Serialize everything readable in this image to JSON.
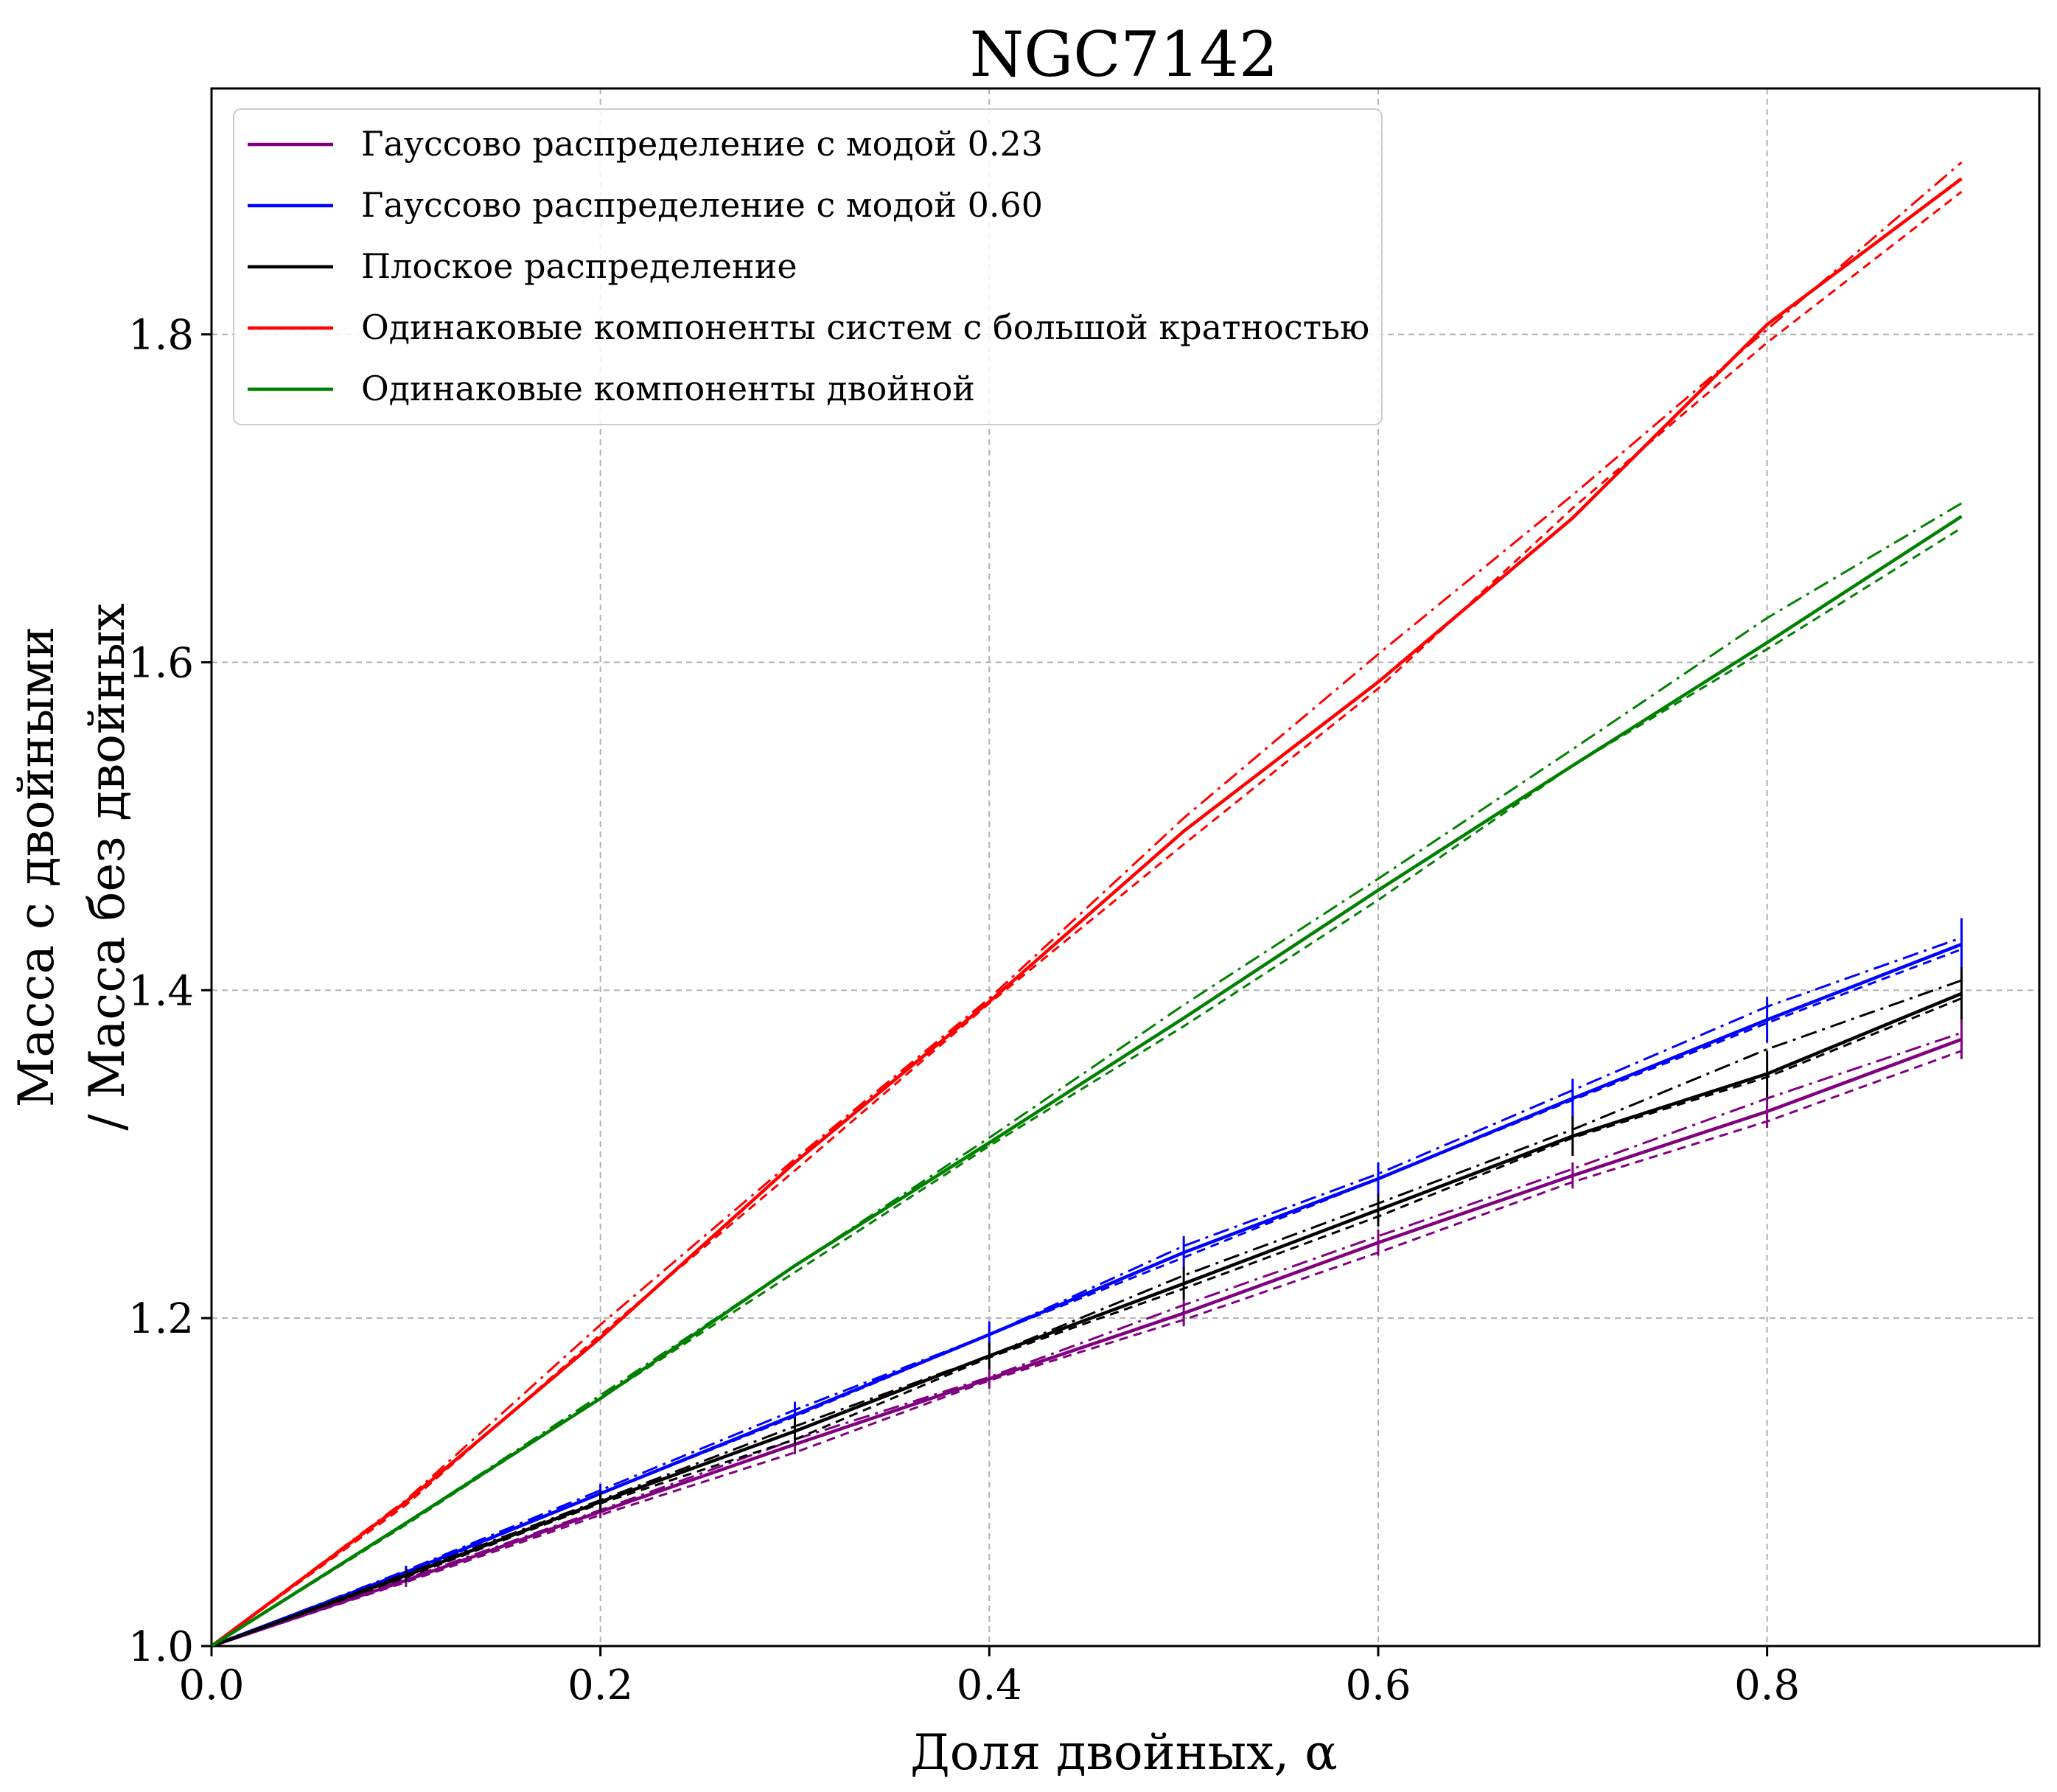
{
  "chart_data": {
    "type": "line",
    "title": "NGC7142",
    "xlabel": "Доля двойных, α",
    "ylabel_line1": "Масса с двойными",
    "ylabel_line2": "/ Масса без двойных",
    "xlim": [
      0.0,
      0.94
    ],
    "ylim": [
      1.0,
      1.95
    ],
    "xticks": [
      "0.0",
      "0.2",
      "0.4",
      "0.6",
      "0.8"
    ],
    "xtick_values": [
      0.0,
      0.2,
      0.4,
      0.6,
      0.8
    ],
    "yticks": [
      "1.0",
      "1.2",
      "1.4",
      "1.6",
      "1.8"
    ],
    "ytick_values": [
      1.0,
      1.2,
      1.4,
      1.6,
      1.8
    ],
    "grid": true,
    "legend_position": "top-left",
    "x": [
      0.0,
      0.1,
      0.2,
      0.3,
      0.4,
      0.5,
      0.6,
      0.7,
      0.8,
      0.9
    ],
    "series": [
      {
        "name": "Гауссово распределение с модой 0.23",
        "color": "#800080",
        "values": [
          1.0,
          1.04,
          1.082,
          1.123,
          1.163,
          1.203,
          1.246,
          1.287,
          1.326,
          1.37
        ],
        "upper": [
          1.0,
          1.041,
          1.083,
          1.126,
          1.164,
          1.208,
          1.25,
          1.291,
          1.334,
          1.374
        ],
        "lower": [
          1.0,
          1.039,
          1.08,
          1.118,
          1.162,
          1.199,
          1.24,
          1.283,
          1.32,
          1.363
        ],
        "error": [
          0.0,
          0.004,
          0.004,
          0.006,
          0.006,
          0.008,
          0.008,
          0.008,
          0.01,
          0.012
        ]
      },
      {
        "name": "Гауссово распределение с модой 0.60",
        "color": "#0000ff",
        "values": [
          1.0,
          1.045,
          1.093,
          1.141,
          1.19,
          1.24,
          1.285,
          1.334,
          1.382,
          1.428
        ],
        "upper": [
          1.0,
          1.046,
          1.095,
          1.144,
          1.19,
          1.244,
          1.288,
          1.339,
          1.39,
          1.432
        ],
        "lower": [
          1.0,
          1.044,
          1.093,
          1.14,
          1.19,
          1.237,
          1.285,
          1.333,
          1.38,
          1.425
        ],
        "error": [
          0.0,
          0.004,
          0.006,
          0.008,
          0.008,
          0.01,
          0.01,
          0.012,
          0.014,
          0.016
        ]
      },
      {
        "name": "Плоское распределение",
        "color": "#000000",
        "values": [
          1.0,
          1.043,
          1.088,
          1.131,
          1.177,
          1.221,
          1.266,
          1.311,
          1.349,
          1.398
        ],
        "upper": [
          1.0,
          1.044,
          1.089,
          1.134,
          1.177,
          1.226,
          1.27,
          1.315,
          1.364,
          1.406
        ],
        "lower": [
          1.0,
          1.042,
          1.087,
          1.126,
          1.176,
          1.218,
          1.262,
          1.31,
          1.347,
          1.395
        ],
        "error": [
          0.0,
          0.004,
          0.006,
          0.008,
          0.008,
          0.01,
          0.01,
          0.012,
          0.014,
          0.016
        ]
      },
      {
        "name": "Одинаковые компоненты систем с большой кратностью",
        "color": "#ff0000",
        "values": [
          1.0,
          1.088,
          1.188,
          1.295,
          1.393,
          1.497,
          1.588,
          1.688,
          1.806,
          1.895
        ],
        "upper": [
          1.0,
          1.089,
          1.196,
          1.297,
          1.395,
          1.505,
          1.605,
          1.702,
          1.803,
          1.905
        ],
        "lower": [
          1.0,
          1.086,
          1.19,
          1.29,
          1.392,
          1.489,
          1.584,
          1.694,
          1.795,
          1.887
        ],
        "error": [
          0.0,
          0.0,
          0.0,
          0.0,
          0.0,
          0.0,
          0.0,
          0.0,
          0.0,
          0.0
        ]
      },
      {
        "name": "Одинаковые компоненты двойной",
        "color": "#008000",
        "values": [
          1.0,
          1.075,
          1.151,
          1.232,
          1.307,
          1.383,
          1.461,
          1.537,
          1.612,
          1.689
        ],
        "upper": [
          1.0,
          1.075,
          1.153,
          1.232,
          1.31,
          1.391,
          1.468,
          1.547,
          1.627,
          1.697
        ],
        "lower": [
          1.0,
          1.074,
          1.151,
          1.228,
          1.305,
          1.378,
          1.455,
          1.537,
          1.608,
          1.682
        ],
        "error": [
          0.0,
          0.0,
          0.0,
          0.0,
          0.0,
          0.0,
          0.0,
          0.0,
          0.0,
          0.0
        ]
      }
    ]
  }
}
